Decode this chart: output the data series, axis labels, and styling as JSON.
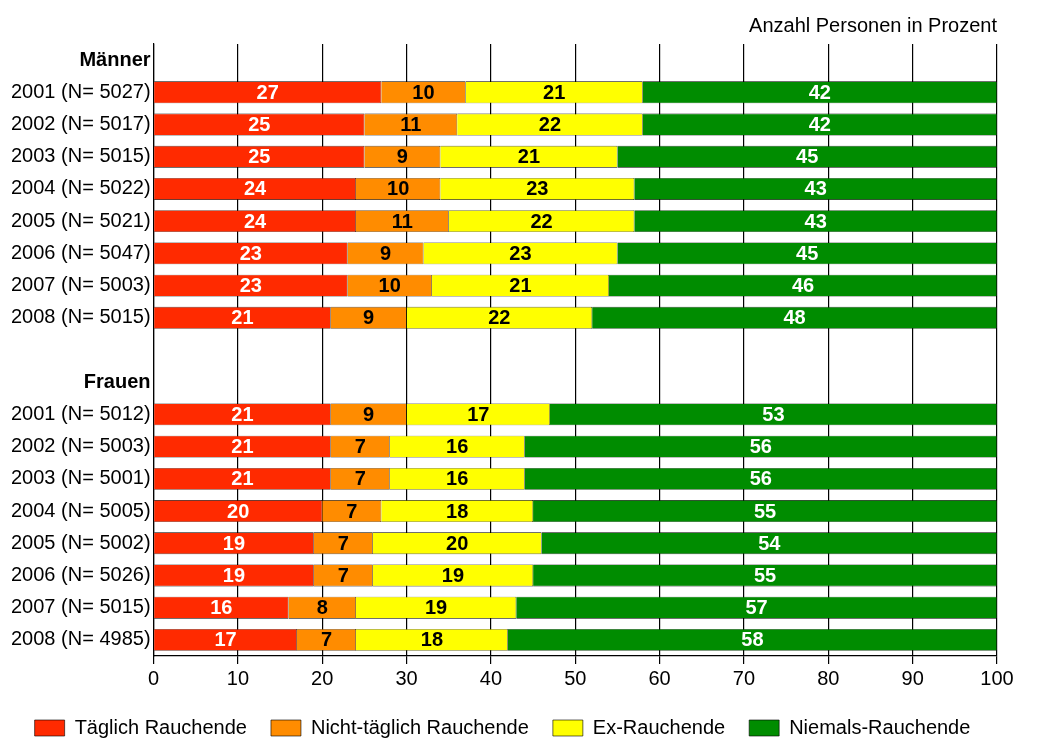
{
  "chart_data": {
    "type": "bar",
    "orientation": "horizontal",
    "stacked": true,
    "data_labels": true,
    "grid": "x",
    "legend": "bottom",
    "annotations": [
      "Anzahl Personen in Prozent"
    ],
    "categories": [
      "Männer",
      "2001 (N= 5027)",
      "2002 (N= 5017)",
      "2003 (N= 5015)",
      "2004 (N= 5022)",
      "2005 (N= 5021)",
      "2006 (N= 5047)",
      "2007 (N= 5003)",
      "2008 (N= 5015)",
      null,
      "Frauen",
      "2001 (N= 5012)",
      "2002 (N= 5003)",
      "2003 (N= 5001)",
      "2004 (N= 5005)",
      "2005 (N= 5002)",
      "2006 (N= 5026)",
      "2007 (N= 5015)",
      "2008 (N= 4985)"
    ],
    "xlim": [
      0,
      100
    ],
    "xticks": [
      0,
      10,
      20,
      30,
      40,
      50,
      60,
      70,
      80,
      90,
      100
    ],
    "series": [
      {
        "name": "Täglich Rauchende",
        "color": "#ff2a00",
        "values": [
          null,
          27,
          25,
          25,
          24,
          24,
          23,
          23,
          21,
          null,
          null,
          21,
          21,
          21,
          20,
          19,
          19,
          16,
          17
        ]
      },
      {
        "name": "Nicht-täglich Rauchende",
        "color": "#ff8c00",
        "values": [
          null,
          10,
          11,
          9,
          10,
          11,
          9,
          10,
          9,
          null,
          null,
          9,
          7,
          7,
          7,
          7,
          7,
          8,
          7
        ]
      },
      {
        "name": "Ex-Rauchende",
        "color": "#ffff00",
        "values": [
          null,
          21,
          22,
          21,
          23,
          22,
          23,
          21,
          22,
          null,
          null,
          17,
          16,
          16,
          18,
          20,
          19,
          19,
          18
        ]
      },
      {
        "name": "Niemals-Rauchende",
        "color": "#008c00",
        "values": [
          null,
          42,
          42,
          45,
          43,
          43,
          45,
          46,
          48,
          null,
          null,
          53,
          56,
          56,
          55,
          54,
          55,
          57,
          58
        ]
      }
    ]
  }
}
